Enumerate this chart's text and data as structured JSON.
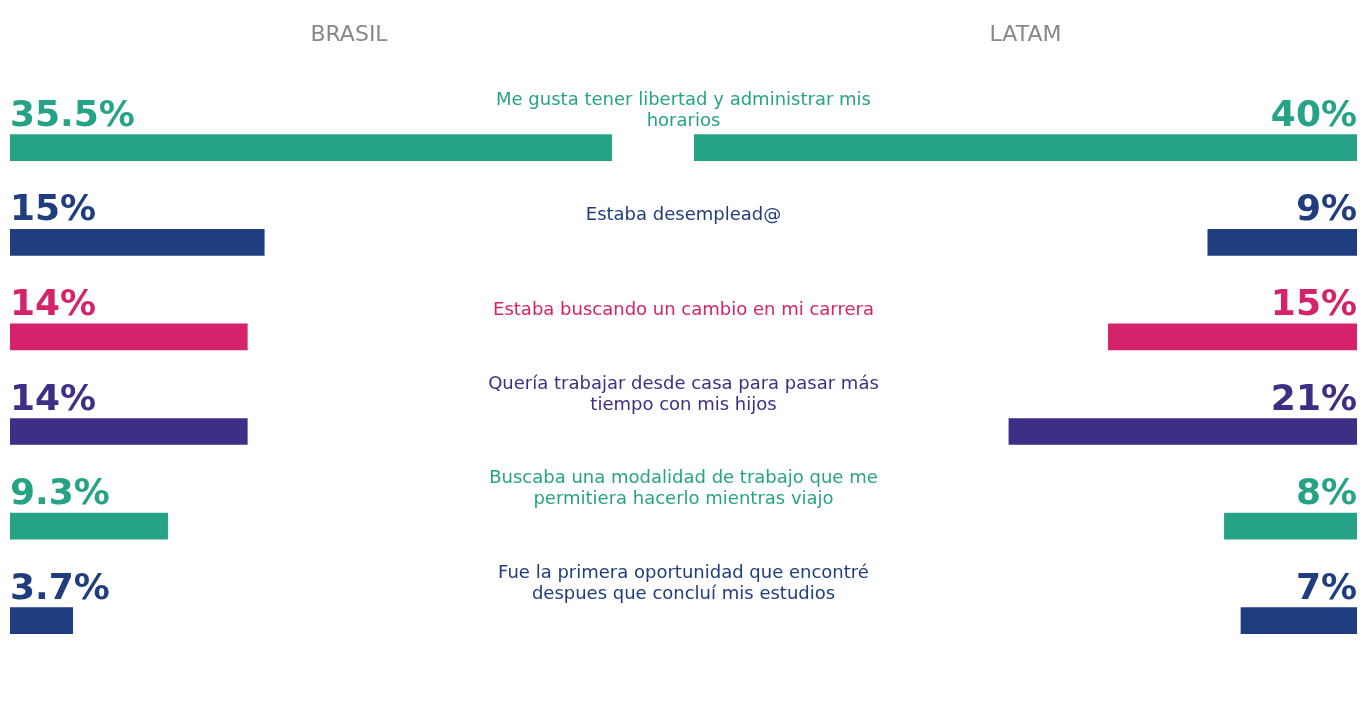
{
  "chart_data": [
    {
      "type": "bar",
      "orientation": "horizontal",
      "title": "BRASIL",
      "tick_labels": "y",
      "categories": [
        "Me gusta tener libertad y administrar mis horarios",
        "Estaba desemplead@",
        "Estaba buscando un cambio en mi carrera",
        "Quería trabajar desde casa para pasar más tiempo con mis hijos",
        "Buscaba una modalidad de trabajo que me permitiera hacerlo mientras viajo",
        "Fue la primera oportunidad que encontré despues que concluí mis estudios"
      ],
      "values": [
        35.5,
        15,
        14,
        14,
        9.3,
        3.7
      ],
      "value_labels": [
        "35.5%",
        "15%",
        "14%",
        "14%",
        "9.3%",
        "3.7%"
      ],
      "colors": [
        "#26a387",
        "#1f3d7f",
        "#d4236a",
        "#3f2e86",
        "#26a387",
        "#1f3d7f"
      ]
    },
    {
      "type": "bar",
      "orientation": "horizontal",
      "title": "LATAM",
      "tick_labels": false,
      "values": [
        40,
        9,
        15,
        21,
        8,
        7
      ],
      "value_labels": [
        "40%",
        "9%",
        "15%",
        "21%",
        "8%",
        "7%"
      ],
      "colors": [
        "#26a387",
        "#1f3d7f",
        "#d4236a",
        "#3f2e86",
        "#26a387",
        "#1f3d7f"
      ]
    }
  ]
}
